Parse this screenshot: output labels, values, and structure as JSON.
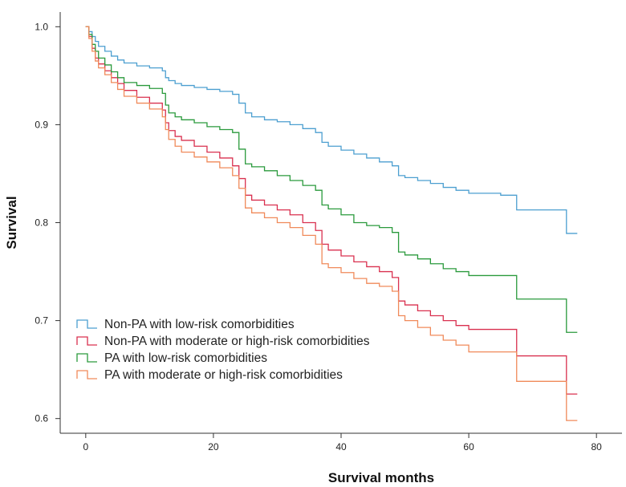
{
  "chart_data": {
    "type": "line",
    "title": "",
    "xlabel": "Survival months",
    "ylabel": "Survival",
    "xlim": [
      -4,
      84
    ],
    "ylim": [
      0.585,
      1.015
    ],
    "xticks": [
      0,
      20,
      40,
      60,
      80
    ],
    "xtick_labels": [
      "0",
      "20",
      "40",
      "60",
      "80"
    ],
    "yticks": [
      0.6,
      0.7,
      0.8,
      0.9,
      1.0
    ],
    "ytick_labels": [
      "0.6",
      "0.7",
      "0.8",
      "0.9",
      "1.0"
    ],
    "grid": false,
    "legend_position": "bottom-left",
    "step": true,
    "series": [
      {
        "name": "Non-PA with low-risk comorbidities",
        "color": "#4c9fd0",
        "x": [
          0,
          0.5,
          1,
          1.5,
          2,
          3,
          4,
          5,
          6,
          8,
          10,
          12,
          12.5,
          13,
          14,
          15,
          17,
          19,
          21,
          23,
          24,
          25,
          26,
          28,
          30,
          32,
          34,
          36,
          37,
          38,
          40,
          42,
          44,
          46,
          48,
          49,
          50,
          52,
          54,
          56,
          58,
          60,
          65,
          67.5,
          75,
          75.3,
          77
        ],
        "y": [
          1.0,
          0.995,
          0.99,
          0.985,
          0.98,
          0.975,
          0.97,
          0.966,
          0.963,
          0.96,
          0.958,
          0.955,
          0.948,
          0.945,
          0.942,
          0.94,
          0.938,
          0.936,
          0.934,
          0.931,
          0.922,
          0.912,
          0.908,
          0.905,
          0.903,
          0.9,
          0.896,
          0.892,
          0.882,
          0.878,
          0.874,
          0.87,
          0.866,
          0.862,
          0.858,
          0.848,
          0.846,
          0.843,
          0.84,
          0.836,
          0.833,
          0.83,
          0.828,
          0.813,
          0.813,
          0.789,
          0.789
        ]
      },
      {
        "name": "Non-PA with moderate or high-risk comorbidities",
        "color": "#d9304f",
        "x": [
          0,
          0.5,
          1,
          1.5,
          2,
          3,
          4,
          5,
          6,
          8,
          10,
          12,
          12.5,
          13,
          14,
          15,
          17,
          19,
          21,
          23,
          24,
          25,
          26,
          28,
          30,
          32,
          34,
          36,
          37,
          38,
          40,
          42,
          44,
          46,
          48,
          49,
          50,
          52,
          54,
          56,
          58,
          60,
          65,
          67.5,
          75,
          75.3,
          77
        ],
        "y": [
          1.0,
          0.99,
          0.978,
          0.968,
          0.962,
          0.955,
          0.948,
          0.942,
          0.935,
          0.928,
          0.922,
          0.915,
          0.902,
          0.894,
          0.888,
          0.884,
          0.878,
          0.872,
          0.866,
          0.858,
          0.845,
          0.828,
          0.823,
          0.818,
          0.813,
          0.808,
          0.8,
          0.792,
          0.778,
          0.772,
          0.766,
          0.76,
          0.755,
          0.75,
          0.744,
          0.72,
          0.716,
          0.71,
          0.705,
          0.7,
          0.695,
          0.691,
          0.691,
          0.664,
          0.664,
          0.625,
          0.625
        ]
      },
      {
        "name": "PA with low-risk comorbidities",
        "color": "#2a9a3c",
        "x": [
          0,
          0.5,
          1,
          1.5,
          2,
          3,
          4,
          5,
          6,
          8,
          10,
          12,
          12.5,
          13,
          14,
          15,
          17,
          19,
          21,
          23,
          24,
          25,
          26,
          28,
          30,
          32,
          34,
          36,
          37,
          38,
          40,
          42,
          44,
          46,
          48,
          49,
          50,
          52,
          54,
          56,
          58,
          60,
          65,
          67.5,
          75,
          75.3,
          77
        ],
        "y": [
          1.0,
          0.992,
          0.982,
          0.975,
          0.968,
          0.961,
          0.954,
          0.948,
          0.943,
          0.94,
          0.937,
          0.932,
          0.92,
          0.912,
          0.908,
          0.905,
          0.902,
          0.898,
          0.895,
          0.892,
          0.875,
          0.86,
          0.857,
          0.853,
          0.848,
          0.843,
          0.838,
          0.833,
          0.818,
          0.814,
          0.808,
          0.8,
          0.797,
          0.795,
          0.79,
          0.77,
          0.767,
          0.763,
          0.758,
          0.753,
          0.75,
          0.746,
          0.746,
          0.722,
          0.722,
          0.688,
          0.688
        ]
      },
      {
        "name": "PA with moderate or high-risk comorbidities",
        "color": "#f08a5a",
        "x": [
          0,
          0.5,
          1,
          1.5,
          2,
          3,
          4,
          5,
          6,
          8,
          10,
          12,
          12.5,
          13,
          14,
          15,
          17,
          19,
          21,
          23,
          24,
          25,
          26,
          28,
          30,
          32,
          34,
          36,
          37,
          38,
          40,
          42,
          44,
          46,
          48,
          49,
          50,
          52,
          54,
          56,
          58,
          60,
          65,
          67.5,
          75,
          75.3,
          77
        ],
        "y": [
          1.0,
          0.988,
          0.975,
          0.965,
          0.958,
          0.951,
          0.943,
          0.936,
          0.929,
          0.922,
          0.916,
          0.908,
          0.895,
          0.885,
          0.878,
          0.872,
          0.867,
          0.862,
          0.856,
          0.848,
          0.835,
          0.815,
          0.81,
          0.805,
          0.8,
          0.795,
          0.787,
          0.778,
          0.758,
          0.754,
          0.749,
          0.743,
          0.738,
          0.735,
          0.73,
          0.705,
          0.7,
          0.693,
          0.685,
          0.68,
          0.675,
          0.668,
          0.668,
          0.638,
          0.638,
          0.598,
          0.598
        ]
      }
    ]
  }
}
